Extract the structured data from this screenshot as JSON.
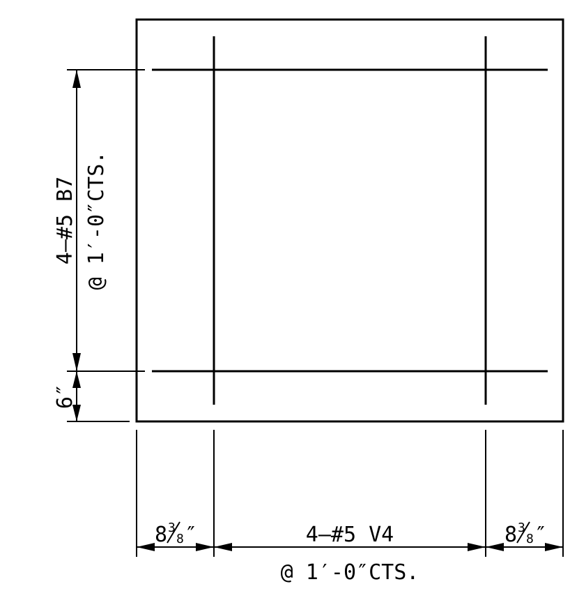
{
  "drawing": {
    "vertical_bars": {
      "top_line": "4–#5 B7",
      "bottom_line": "@ 1′-0″CTS."
    },
    "cover_dimension": "6″",
    "horizontal_bars": {
      "top_line": "4–#5 V4",
      "bottom_line": "@ 1′-0″CTS."
    },
    "edge_dimension_left": {
      "whole": "8",
      "num": "3",
      "den": "8",
      "unit": "″"
    },
    "edge_dimension_right": {
      "whole": "8",
      "num": "3",
      "den": "8",
      "unit": "″"
    }
  }
}
